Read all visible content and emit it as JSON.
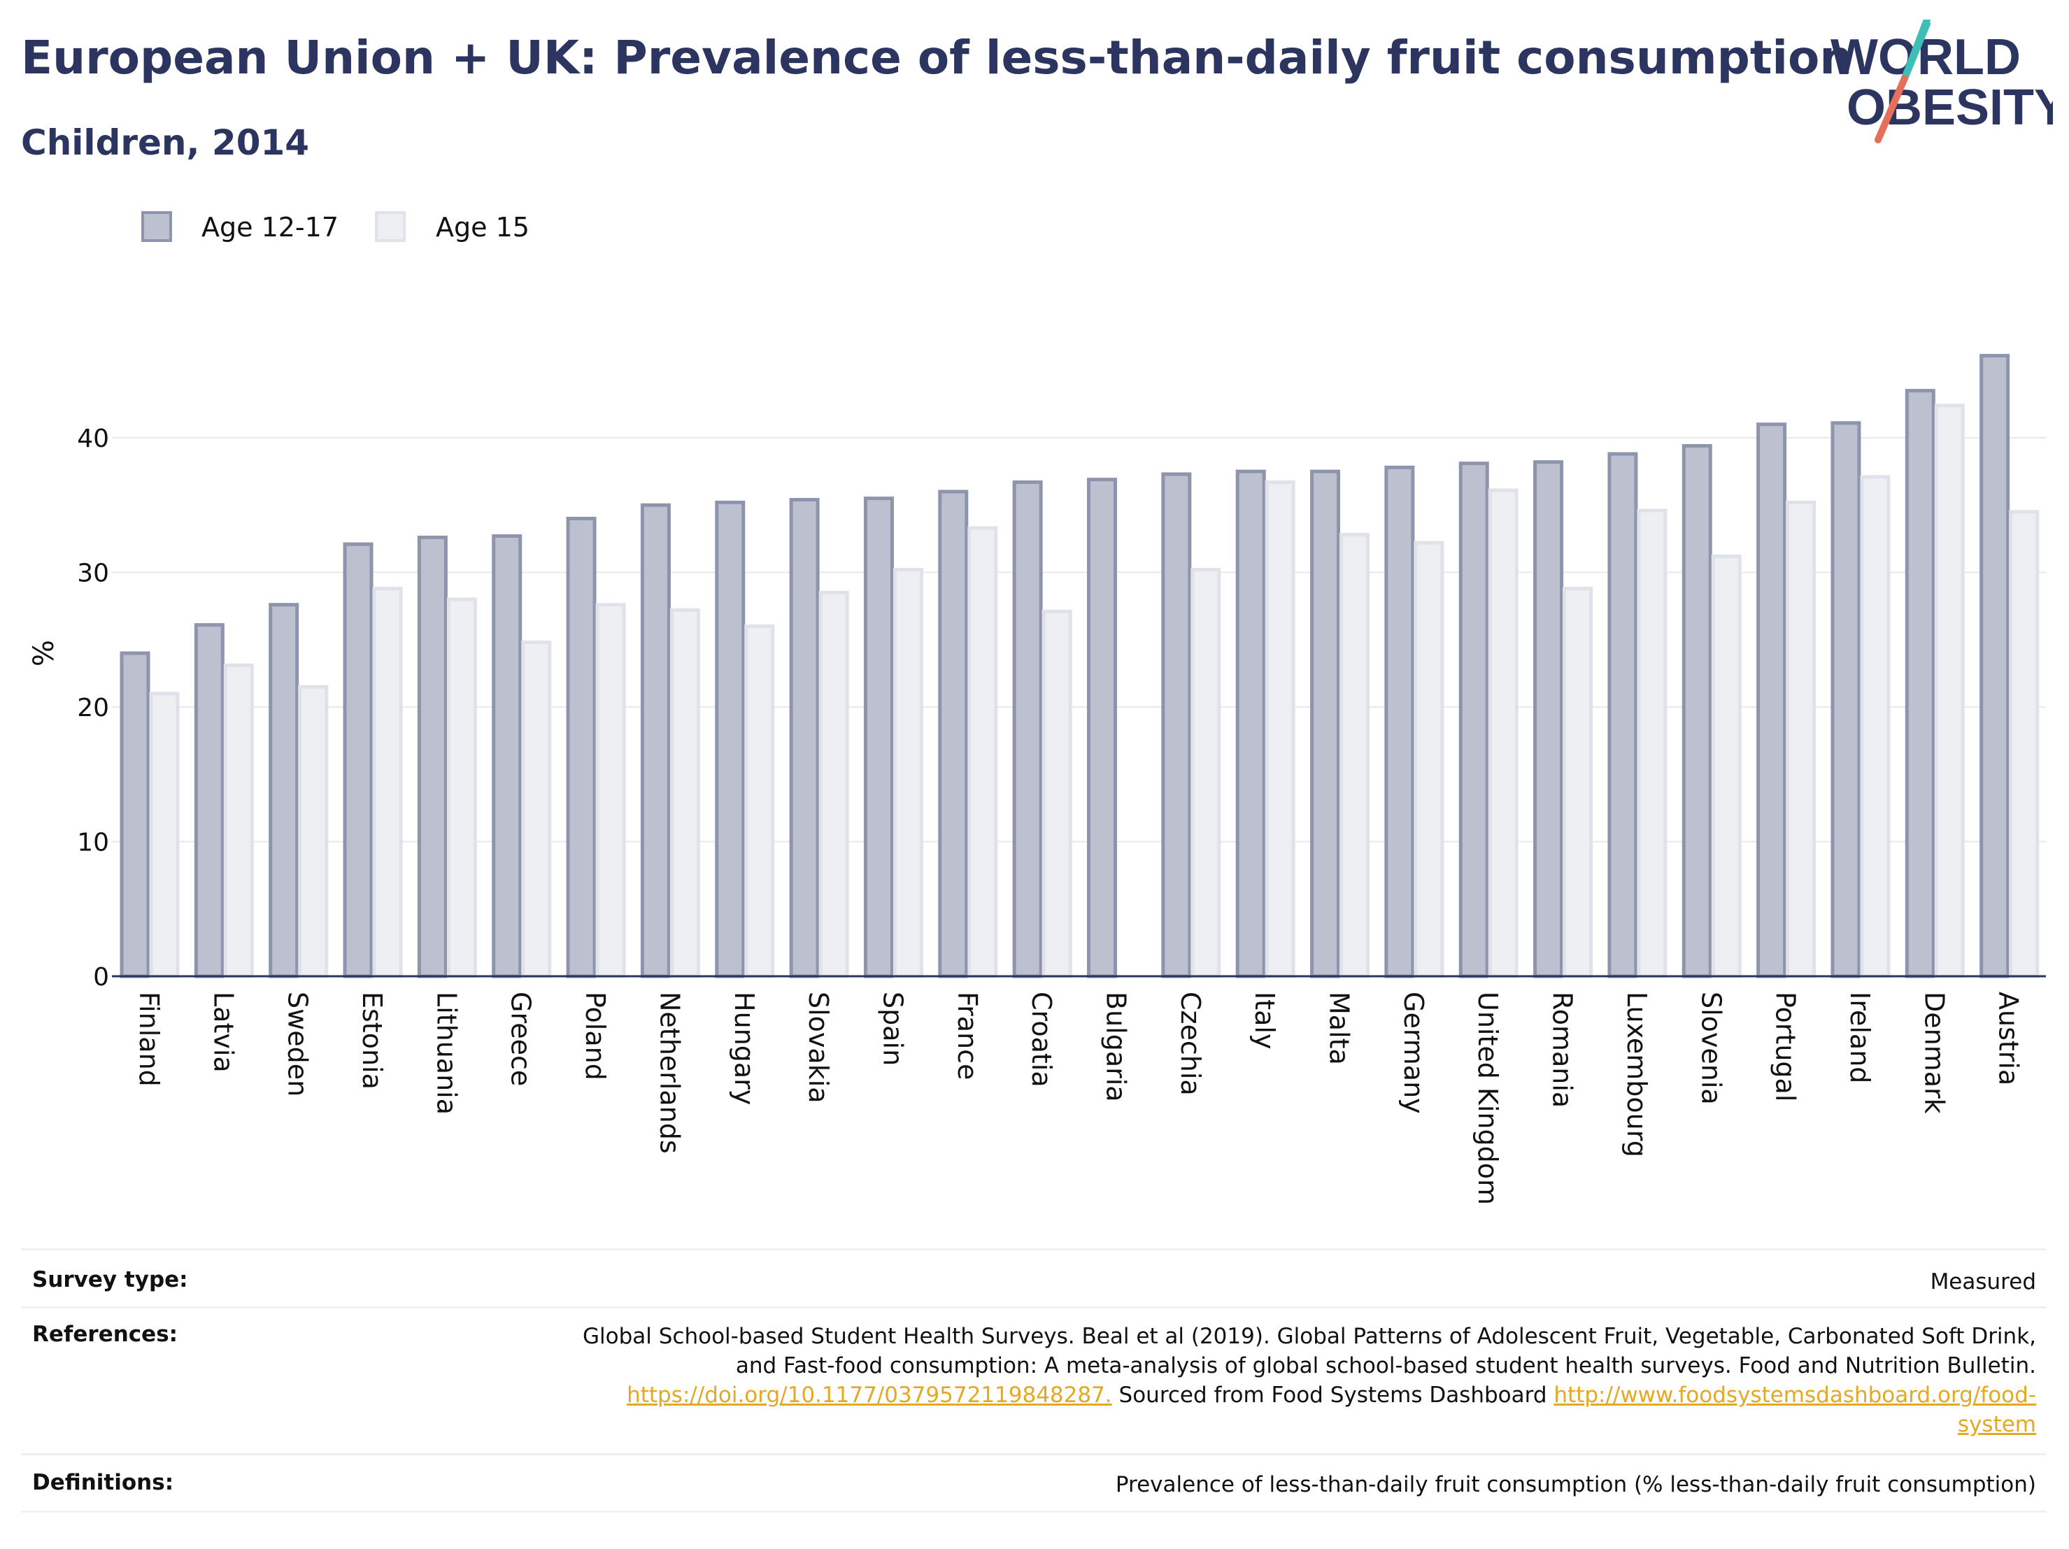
{
  "header": {
    "title": "European Union + UK: Prevalence of less-than-daily fruit consumption",
    "subtitle": "Children, 2014",
    "logo_line1": "WORLD",
    "logo_line2": "OBESITY"
  },
  "chart_data": {
    "type": "bar",
    "ylabel": "%",
    "xlabel": "",
    "ylim": [
      0,
      48
    ],
    "yticks": [
      0,
      10,
      20,
      30,
      40
    ],
    "grid": true,
    "legend_position": "top-left",
    "categories": [
      "Finland",
      "Latvia",
      "Sweden",
      "Estonia",
      "Lithuania",
      "Greece",
      "Poland",
      "Netherlands",
      "Hungary",
      "Slovakia",
      "Spain",
      "France",
      "Croatia",
      "Bulgaria",
      "Czechia",
      "Italy",
      "Malta",
      "Germany",
      "United Kingdom",
      "Romania",
      "Luxembourg",
      "Slovenia",
      "Portugal",
      "Ireland",
      "Denmark",
      "Austria"
    ],
    "series": [
      {
        "name": "Age 12-17",
        "color": "#bcc0cf",
        "stroke": "#8e94ab",
        "values": [
          24.0,
          26.1,
          27.6,
          32.1,
          32.6,
          32.7,
          34.0,
          35.0,
          35.2,
          35.4,
          35.5,
          36.0,
          36.7,
          36.9,
          37.3,
          37.5,
          37.5,
          37.8,
          38.1,
          38.2,
          38.8,
          39.4,
          41.0,
          41.1,
          43.5,
          46.1
        ]
      },
      {
        "name": "Age 15",
        "color": "#eeeff3",
        "stroke": "#e0e2e9",
        "values": [
          21.0,
          23.1,
          21.5,
          28.8,
          28.0,
          24.8,
          27.6,
          27.2,
          26.0,
          28.5,
          30.2,
          33.3,
          27.1,
          null,
          30.2,
          36.7,
          32.8,
          32.2,
          36.1,
          28.8,
          34.6,
          31.2,
          35.2,
          37.1,
          42.4,
          34.5
        ]
      }
    ]
  },
  "footer": {
    "survey_label": "Survey type:",
    "survey_value": "Measured",
    "references_label": "References:",
    "references_line1": "Global School-based Student Health Surveys. Beal et al (2019). Global Patterns of Adolescent Fruit, Vegetable, Carbonated Soft Drink,",
    "references_line2": "and Fast-food consumption: A meta-analysis of global school-based student health surveys. Food and Nutrition Bulletin.",
    "references_link1": "https://doi.org/10.1177/0379572119848287.",
    "references_mid": " Sourced from Food Systems Dashboard ",
    "references_link2a": "http://www.foodsystemsdashboard.org/food-",
    "references_link2b": "system",
    "definitions_label": "Definitions:",
    "definitions_value": "Prevalence of less-than-daily fruit consumption (% less-than-daily fruit consumption)"
  }
}
